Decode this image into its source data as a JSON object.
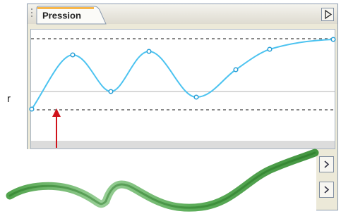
{
  "panel": {
    "tab_label": "Pression"
  },
  "side_text": "r"
}
